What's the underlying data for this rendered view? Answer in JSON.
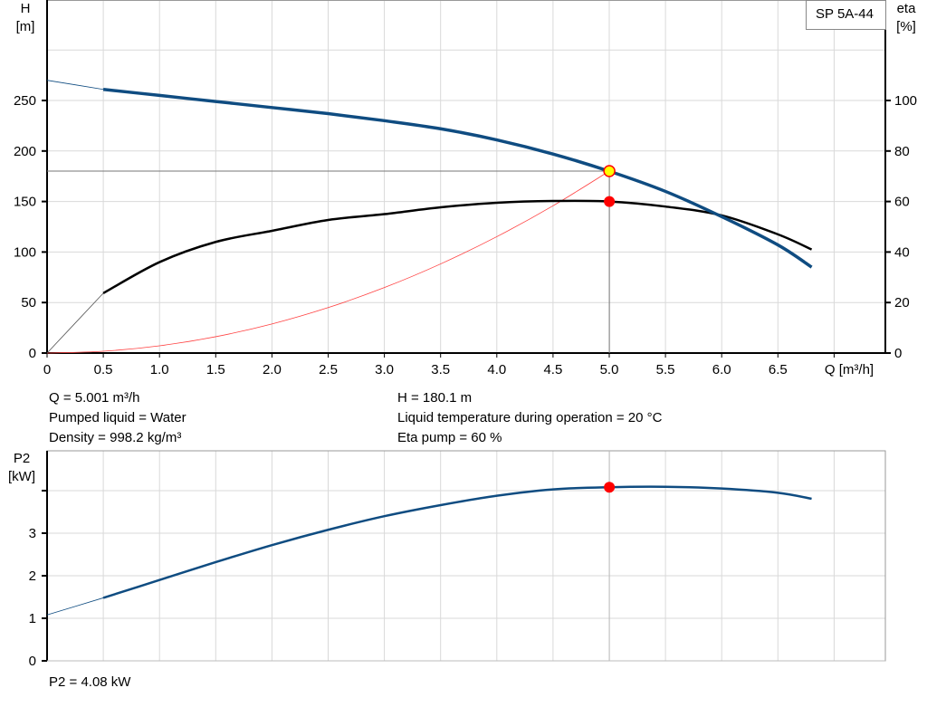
{
  "chart_data": [
    {
      "type": "line",
      "pump_label": "SP 5A-44",
      "x_axis": {
        "label": "Q [m³/h]",
        "range": [
          0,
          7.4
        ],
        "ticks": [
          0,
          0.5,
          1.0,
          1.5,
          2.0,
          2.5,
          3.0,
          3.5,
          4.0,
          4.5,
          5.0,
          5.5,
          6.0,
          6.5
        ],
        "tick_labels": [
          "0",
          "0.5",
          "1.0",
          "1.5",
          "2.0",
          "2.5",
          "3.0",
          "3.5",
          "4.0",
          "4.5",
          "5.0",
          "5.5",
          "6.0",
          "6.5"
        ]
      },
      "y_axis_left": {
        "label_line1": "H",
        "label_line2": "[m]",
        "range": [
          0,
          350
        ],
        "ticks": [
          0,
          50,
          100,
          150,
          200,
          250
        ],
        "tick_labels": [
          "0",
          "50",
          "100",
          "150",
          "200",
          "250"
        ]
      },
      "y_axis_right": {
        "label_line1": "eta",
        "label_line2": "[%]",
        "range": [
          0,
          125
        ],
        "ticks": [
          0,
          20,
          40,
          60,
          80,
          100
        ],
        "tick_labels": [
          "0",
          "20",
          "40",
          "60",
          "80",
          "100"
        ]
      },
      "grid": true,
      "series": [
        {
          "id": "head",
          "axis": "left",
          "color": "#0f4c81",
          "x": [
            0,
            0.5,
            1.0,
            1.5,
            2.0,
            2.5,
            3.0,
            3.5,
            4.0,
            4.5,
            5.0,
            5.5,
            6.0,
            6.5,
            6.8
          ],
          "y": [
            270,
            261,
            255,
            249,
            243,
            237,
            230,
            222,
            211,
            197,
            180,
            160,
            135,
            107,
            85
          ]
        },
        {
          "id": "efficiency",
          "axis": "right",
          "color": "#000000",
          "x": [
            0,
            0.5,
            1.0,
            1.5,
            2.0,
            2.5,
            3.0,
            3.5,
            4.0,
            4.5,
            5.0,
            5.5,
            6.0,
            6.5,
            6.8
          ],
          "y": [
            0,
            23.7,
            36,
            44,
            48.4,
            52.7,
            55,
            57.7,
            59.5,
            60.2,
            60,
            58,
            54.5,
            47,
            41
          ]
        },
        {
          "id": "system-curve",
          "axis": "left",
          "color": "#ff4040",
          "x": [
            0,
            0.5,
            1.0,
            1.5,
            2.0,
            2.5,
            3.0,
            3.5,
            4.0,
            4.5,
            5.0
          ],
          "y": [
            0,
            1.8,
            7.2,
            16.2,
            28.8,
            45,
            64.8,
            88.2,
            115.2,
            145.8,
            180.1
          ]
        }
      ],
      "duty_point": {
        "q": 5.001,
        "h": 180.1,
        "eta": 60,
        "color": "#ffff00"
      }
    },
    {
      "type": "line",
      "x_axis": {
        "range": [
          0,
          7.4
        ]
      },
      "y_axis_left": {
        "label_line1": "P2",
        "label_line2": "[kW]",
        "range": [
          0,
          4.9
        ],
        "ticks": [
          0,
          1,
          2,
          3,
          4
        ],
        "tick_labels": [
          "0",
          "1",
          "2",
          "3",
          ""
        ]
      },
      "grid": true,
      "series": [
        {
          "id": "power",
          "axis": "left",
          "color": "#0f4c81",
          "x": [
            0,
            0.5,
            1.0,
            1.5,
            2.0,
            2.5,
            3.0,
            3.5,
            4.0,
            4.5,
            5.0,
            5.5,
            6.0,
            6.5,
            6.8
          ],
          "y": [
            1.08,
            1.48,
            1.9,
            2.32,
            2.72,
            3.08,
            3.4,
            3.66,
            3.88,
            4.03,
            4.08,
            4.09,
            4.05,
            3.95,
            3.81
          ]
        }
      ],
      "duty_point": {
        "q": 5.001,
        "p2": 4.08
      }
    }
  ],
  "info": {
    "q": "Q = 5.001 m³/h",
    "liquid": "Pumped liquid = Water",
    "density": "Density = 998.2 kg/m³",
    "h": "H = 180.1 m",
    "temp": "Liquid temperature during operation = 20 °C",
    "eta": "Eta pump = 60 %",
    "p2": "P2 = 4.08 kW"
  }
}
